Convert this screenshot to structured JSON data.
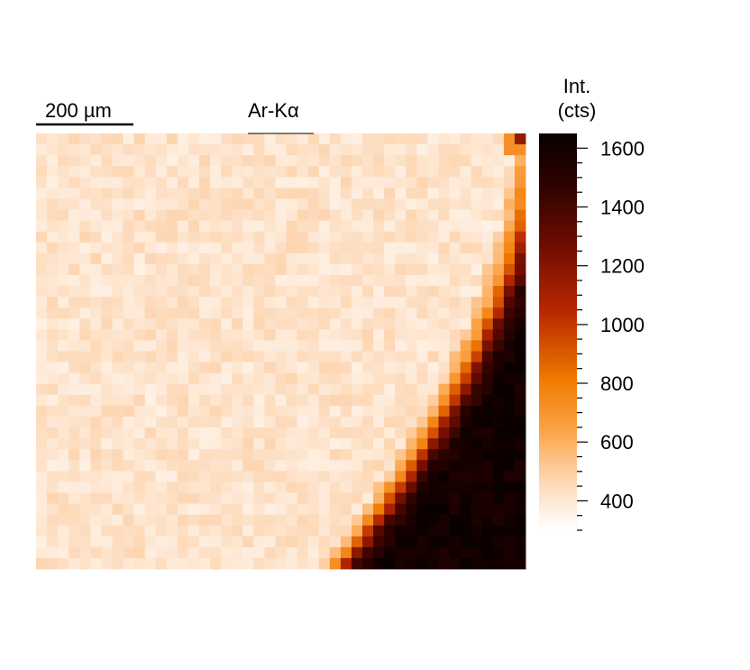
{
  "chart_data": {
    "type": "heatmap",
    "title": "Ar-Kα",
    "scalebar": {
      "label": "200 µm"
    },
    "colorbar": {
      "title_line1": "Int.",
      "title_line2": "(cts)",
      "range": [
        300,
        1650
      ],
      "ticks": [
        400,
        600,
        800,
        1000,
        1200,
        1400,
        1600
      ],
      "colormap": "white-orange-red-black"
    },
    "grid": {
      "cols": 45,
      "rows": 40
    },
    "background_level": 420,
    "hot_corner": "bottom-right",
    "max_level": 1620
  }
}
